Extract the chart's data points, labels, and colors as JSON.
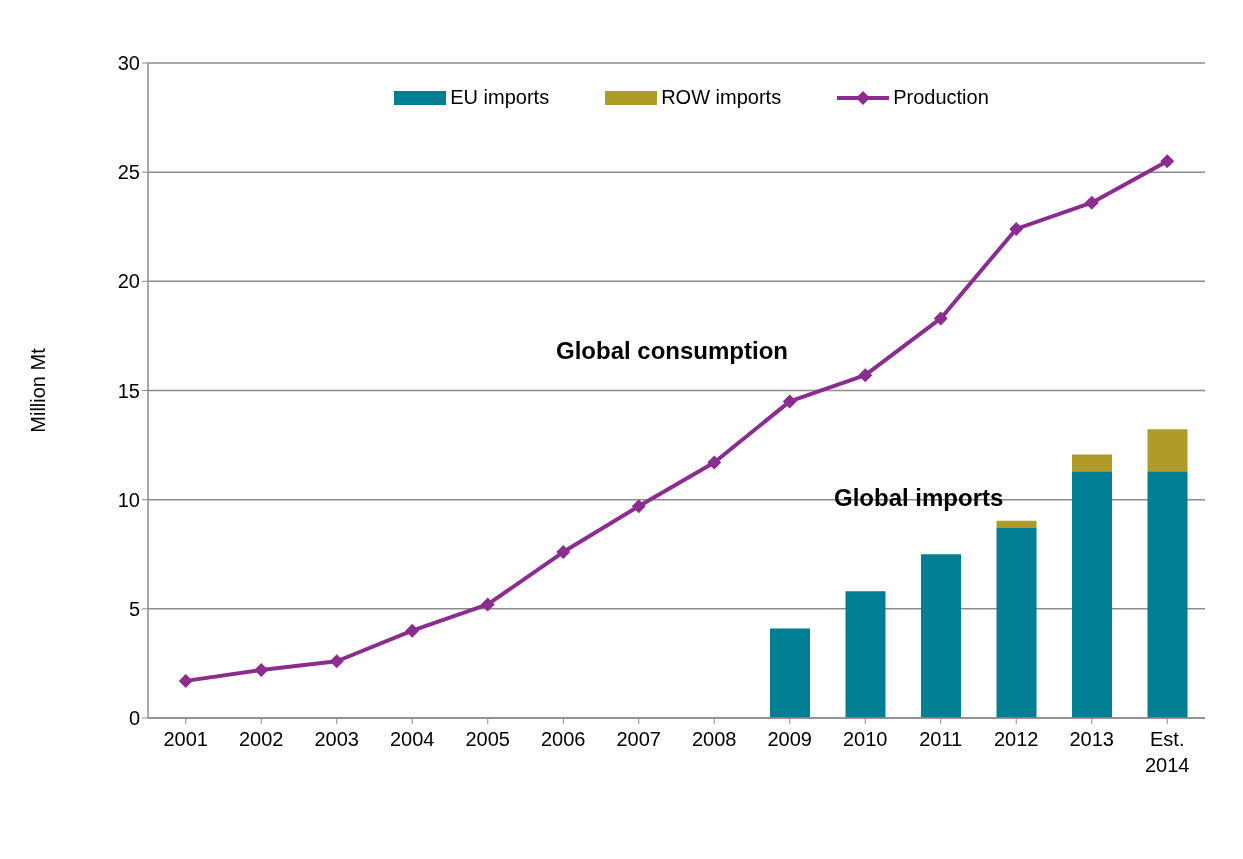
{
  "chart_data": {
    "type": "bar",
    "stacked": true,
    "ylabel": "Million Mt",
    "categories": [
      "2001",
      "2002",
      "2003",
      "2004",
      "2005",
      "2006",
      "2007",
      "2008",
      "2009",
      "2010",
      "2011",
      "2012",
      "2013",
      "Est. 2014"
    ],
    "series": [
      {
        "name": "EU imports",
        "color": "#007f94",
        "values": [
          null,
          null,
          null,
          null,
          null,
          null,
          null,
          null,
          4.1,
          5.8,
          7.5,
          8.7,
          11.3,
          11.3
        ]
      },
      {
        "name": "ROW imports",
        "color": "#b09a28",
        "values": [
          null,
          null,
          null,
          null,
          null,
          null,
          null,
          null,
          null,
          null,
          null,
          0.34,
          0.77,
          1.92
        ]
      },
      {
        "name": "Production",
        "type": "line",
        "color": "#8b2d8f",
        "values": [
          1.7,
          2.2,
          2.6,
          4.0,
          5.2,
          7.6,
          9.7,
          11.7,
          14.5,
          15.7,
          18.3,
          22.4,
          23.6,
          25.5
        ]
      }
    ],
    "ylim": [
      0,
      30
    ],
    "yticks": [
      0,
      5,
      10,
      15,
      20,
      25,
      30
    ],
    "grid": "y",
    "legend": "top",
    "marker": "diamond",
    "line_style": "solid",
    "annotations": [
      "Global consumption",
      "Global imports"
    ]
  }
}
